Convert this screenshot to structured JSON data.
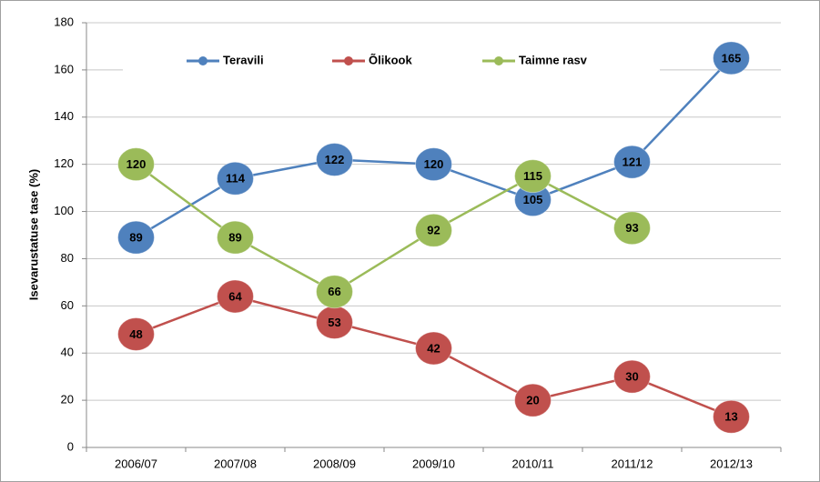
{
  "chart_data": {
    "type": "line",
    "y_label": "Isevarustatuse tase (%)",
    "categories": [
      "2006/07",
      "2007/08",
      "2008/09",
      "2009/10",
      "2010/11",
      "2011/12",
      "2012/13"
    ],
    "series": [
      {
        "name": "Teravili",
        "color": "#4f81bd",
        "values": [
          89,
          114,
          122,
          120,
          105,
          121,
          165
        ]
      },
      {
        "name": "Õlikook",
        "color": "#c0504d",
        "values": [
          48,
          64,
          53,
          42,
          20,
          30,
          13
        ]
      },
      {
        "name": "Taimne rasv",
        "color": "#9bbb59",
        "values": [
          120,
          89,
          66,
          92,
          115,
          93,
          null
        ]
      }
    ],
    "ylim": [
      0,
      180
    ],
    "yticks": [
      0,
      20,
      40,
      60,
      80,
      100,
      120,
      140,
      160,
      180
    ],
    "grid": true,
    "legend": "top"
  }
}
